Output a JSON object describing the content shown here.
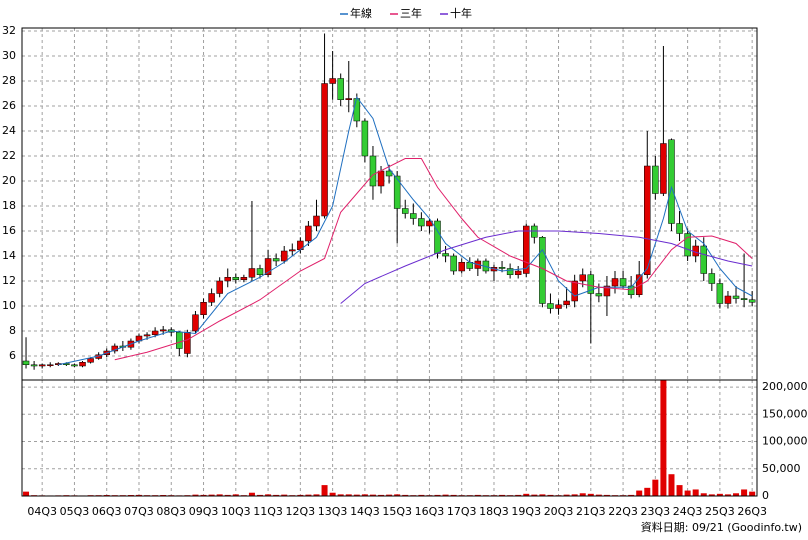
{
  "chart_data": {
    "type": "candlestick",
    "legend_position": "top",
    "grid": true,
    "xlim": [
      -0.5,
      90.6
    ],
    "xticks": [
      {
        "value": 2,
        "label": "04Q3"
      },
      {
        "value": 6,
        "label": "05Q3"
      },
      {
        "value": 10,
        "label": "06Q3"
      },
      {
        "value": 14,
        "label": "07Q3"
      },
      {
        "value": 18,
        "label": "08Q3"
      },
      {
        "value": 22,
        "label": "09Q3"
      },
      {
        "value": 26,
        "label": "10Q3"
      },
      {
        "value": 30,
        "label": "11Q3"
      },
      {
        "value": 34,
        "label": "12Q3"
      },
      {
        "value": 38,
        "label": "13Q3"
      },
      {
        "value": 42,
        "label": "14Q3"
      },
      {
        "value": 46,
        "label": "15Q3"
      },
      {
        "value": 50,
        "label": "16Q3"
      },
      {
        "value": 54,
        "label": "17Q3"
      },
      {
        "value": 58,
        "label": "18Q3"
      },
      {
        "value": 62,
        "label": "19Q3"
      },
      {
        "value": 66,
        "label": "20Q3"
      },
      {
        "value": 70,
        "label": "21Q3"
      },
      {
        "value": 74,
        "label": "22Q3"
      },
      {
        "value": 78,
        "label": "23Q3"
      },
      {
        "value": 82,
        "label": "24Q3"
      },
      {
        "value": 86,
        "label": "25Q3"
      },
      {
        "value": 90,
        "label": "26Q3"
      }
    ],
    "ylim": [
      4.08,
      32.24
    ],
    "yticks": [
      6,
      8,
      10,
      12,
      14,
      16,
      18,
      20,
      22,
      24,
      26,
      28,
      30,
      32
    ],
    "y2lim": [
      0,
      213000
    ],
    "y2ticks": [
      0,
      {
        "value": 50000,
        "label": "50,000"
      },
      {
        "value": 100000,
        "label": "100,000"
      },
      {
        "value": 150000,
        "label": "150,000"
      },
      {
        "value": 200000,
        "label": "200,000"
      }
    ],
    "candles": {
      "up_color": "#e00000",
      "down_color": "#33cc33",
      "volume_color": "#e00000",
      "x": [
        0,
        1,
        2,
        3,
        4,
        5,
        6,
        7,
        8,
        9,
        10,
        11,
        12,
        13,
        14,
        15,
        16,
        17,
        18,
        19,
        20,
        21,
        22,
        23,
        24,
        25,
        26,
        27,
        28,
        29,
        30,
        31,
        32,
        33,
        34,
        35,
        36,
        37,
        38,
        39,
        40,
        41,
        42,
        43,
        44,
        45,
        46,
        47,
        48,
        49,
        50,
        51,
        52,
        53,
        54,
        55,
        56,
        57,
        58,
        59,
        60,
        61,
        62,
        63,
        64,
        65,
        66,
        67,
        68,
        69,
        70,
        71,
        72,
        73,
        74,
        75,
        76,
        77,
        78,
        79,
        80,
        81,
        82,
        83,
        84,
        85,
        86,
        87,
        88,
        89,
        90
      ],
      "ohlc": [
        [
          5.6,
          7.5,
          5.0,
          5.3
        ],
        [
          5.3,
          5.6,
          4.9,
          5.2
        ],
        [
          5.2,
          5.4,
          5.0,
          5.3
        ],
        [
          5.3,
          5.5,
          5.1,
          5.3
        ],
        [
          5.3,
          5.5,
          5.2,
          5.4
        ],
        [
          5.4,
          5.5,
          5.2,
          5.3
        ],
        [
          5.3,
          5.4,
          5.1,
          5.2
        ],
        [
          5.2,
          5.6,
          5.1,
          5.5
        ],
        [
          5.5,
          5.9,
          5.4,
          5.8
        ],
        [
          5.8,
          6.3,
          5.7,
          6.1
        ],
        [
          6.1,
          6.6,
          5.9,
          6.4
        ],
        [
          6.4,
          7.0,
          6.2,
          6.8
        ],
        [
          6.8,
          7.2,
          6.4,
          6.7
        ],
        [
          6.7,
          7.4,
          6.5,
          7.2
        ],
        [
          7.2,
          7.8,
          7.0,
          7.6
        ],
        [
          7.6,
          7.9,
          7.3,
          7.7
        ],
        [
          7.7,
          8.3,
          7.5,
          8.0
        ],
        [
          8.0,
          8.4,
          7.7,
          8.1
        ],
        [
          8.1,
          8.3,
          7.6,
          7.9
        ],
        [
          7.9,
          8.0,
          6.0,
          6.6
        ],
        [
          6.2,
          8.1,
          5.9,
          7.9
        ],
        [
          8.0,
          9.6,
          7.8,
          9.3
        ],
        [
          9.3,
          10.6,
          9.0,
          10.3
        ],
        [
          10.3,
          11.4,
          10.0,
          11.0
        ],
        [
          11.0,
          12.3,
          10.7,
          12.0
        ],
        [
          12.0,
          13.0,
          11.5,
          12.3
        ],
        [
          12.3,
          12.6,
          11.8,
          12.1
        ],
        [
          12.1,
          12.5,
          11.9,
          12.3
        ],
        [
          12.3,
          18.4,
          12.0,
          13.0
        ],
        [
          13.0,
          13.3,
          12.2,
          12.5
        ],
        [
          12.5,
          14.5,
          12.3,
          13.8
        ],
        [
          13.8,
          14.2,
          13.2,
          13.6
        ],
        [
          13.6,
          14.8,
          13.4,
          14.4
        ],
        [
          14.4,
          15.0,
          14.0,
          14.5
        ],
        [
          14.5,
          15.5,
          14.2,
          15.2
        ],
        [
          15.2,
          16.8,
          14.8,
          16.4
        ],
        [
          16.4,
          18.5,
          16.0,
          17.2
        ],
        [
          17.2,
          31.8,
          17.0,
          27.8
        ],
        [
          27.8,
          30.4,
          26.5,
          28.2
        ],
        [
          28.2,
          28.6,
          26.0,
          26.5
        ],
        [
          26.5,
          29.6,
          25.5,
          26.6
        ],
        [
          26.6,
          27.0,
          24.3,
          24.8
        ],
        [
          24.8,
          25.0,
          21.5,
          22.0
        ],
        [
          22.0,
          22.8,
          18.5,
          19.6
        ],
        [
          19.6,
          21.2,
          19.0,
          20.8
        ],
        [
          20.8,
          21.3,
          19.8,
          20.4
        ],
        [
          20.4,
          20.8,
          15.0,
          17.8
        ],
        [
          17.8,
          18.5,
          17.0,
          17.4
        ],
        [
          17.4,
          18.2,
          16.5,
          17.0
        ],
        [
          17.0,
          17.5,
          16.0,
          16.4
        ],
        [
          16.4,
          17.0,
          15.8,
          16.8
        ],
        [
          16.8,
          17.0,
          13.8,
          14.2
        ],
        [
          14.2,
          14.8,
          13.5,
          14.0
        ],
        [
          14.0,
          14.2,
          12.5,
          12.8
        ],
        [
          12.8,
          13.8,
          12.6,
          13.5
        ],
        [
          13.5,
          13.9,
          12.8,
          13.0
        ],
        [
          13.0,
          13.8,
          12.4,
          13.6
        ],
        [
          13.6,
          13.8,
          12.6,
          12.8
        ],
        [
          12.8,
          13.3,
          12.0,
          13.1
        ],
        [
          13.1,
          13.6,
          12.7,
          13.0
        ],
        [
          13.0,
          13.4,
          12.2,
          12.5
        ],
        [
          12.5,
          13.2,
          12.2,
          12.8
        ],
        [
          12.6,
          16.6,
          12.3,
          16.4
        ],
        [
          16.4,
          16.6,
          15.0,
          15.5
        ],
        [
          15.5,
          15.6,
          9.9,
          10.2
        ],
        [
          10.2,
          11.0,
          9.4,
          9.8
        ],
        [
          9.8,
          10.5,
          9.3,
          10.1
        ],
        [
          10.1,
          11.5,
          9.8,
          10.4
        ],
        [
          10.4,
          12.5,
          9.9,
          12.0
        ],
        [
          12.0,
          13.0,
          11.5,
          12.5
        ],
        [
          12.5,
          12.8,
          7.0,
          11.0
        ],
        [
          11.0,
          11.8,
          10.3,
          10.8
        ],
        [
          10.8,
          12.4,
          9.2,
          11.6
        ],
        [
          11.6,
          12.8,
          11.0,
          12.2
        ],
        [
          12.2,
          12.8,
          11.4,
          11.6
        ],
        [
          11.6,
          12.4,
          10.6,
          10.9
        ],
        [
          10.9,
          13.6,
          10.7,
          12.5
        ],
        [
          12.5,
          24.0,
          12.2,
          21.2
        ],
        [
          21.2,
          22.0,
          18.5,
          19.0
        ],
        [
          19.0,
          30.8,
          18.8,
          23.0
        ],
        [
          23.3,
          23.4,
          16.0,
          16.6
        ],
        [
          16.6,
          17.6,
          15.2,
          15.8
        ],
        [
          15.8,
          16.2,
          13.6,
          14.0
        ],
        [
          14.0,
          15.3,
          13.5,
          14.8
        ],
        [
          14.8,
          15.5,
          12.0,
          12.6
        ],
        [
          12.6,
          13.0,
          11.2,
          11.8
        ],
        [
          11.8,
          12.2,
          9.8,
          10.2
        ],
        [
          10.2,
          11.2,
          9.8,
          10.8
        ],
        [
          10.8,
          11.6,
          10.2,
          10.6
        ],
        [
          10.6,
          14.2,
          9.9,
          10.5
        ],
        [
          10.5,
          11.2,
          10.0,
          10.3
        ]
      ],
      "volume": [
        8000,
        1500,
        1200,
        1000,
        1200,
        1500,
        1200,
        1000,
        1500,
        1500,
        1800,
        1500,
        1500,
        1800,
        2000,
        1500,
        1500,
        1800,
        1500,
        1200,
        1500,
        2500,
        2000,
        2500,
        3000,
        2000,
        3000,
        1500,
        6000,
        2000,
        3000,
        2000,
        2500,
        1500,
        2000,
        2500,
        3000,
        20000,
        6000,
        3000,
        3000,
        2500,
        3000,
        2500,
        2000,
        2500,
        3000,
        2000,
        1500,
        2000,
        1500,
        2000,
        2500,
        2000,
        1500,
        1500,
        2000,
        1500,
        1500,
        2000,
        1500,
        2000,
        4000,
        2500,
        3000,
        2000,
        1500,
        2500,
        3000,
        5000,
        4000,
        2500,
        2000,
        1500,
        1500,
        2000,
        10000,
        15000,
        30000,
        213000,
        40000,
        20000,
        10000,
        12000,
        5000,
        3000,
        4000,
        3000,
        5000,
        12000,
        8000
      ]
    },
    "series": [
      {
        "name": "年線",
        "color": "#1f6fc0",
        "x": [
          4,
          9,
          14,
          18,
          21,
          25,
          29,
          32,
          36,
          38,
          40,
          41,
          43,
          45,
          48,
          50,
          52,
          55,
          59,
          62,
          64,
          66,
          68,
          71,
          75,
          77,
          79,
          80,
          82,
          84,
          86,
          88,
          90
        ],
        "values": [
          5.3,
          6,
          7.2,
          8,
          7.8,
          11,
          12.3,
          13.5,
          15.5,
          18,
          24,
          26.7,
          25,
          21,
          18.5,
          17,
          15,
          13.5,
          12.8,
          13,
          14.5,
          12,
          10.8,
          11.5,
          11.5,
          13,
          17,
          19.5,
          16,
          15,
          13,
          11.5,
          10.8
        ]
      },
      {
        "name": "三年",
        "color": "#e0206a",
        "x": [
          11,
          15,
          20,
          24,
          29,
          34,
          37,
          39,
          43,
          47,
          49,
          51,
          54,
          56,
          60,
          64,
          67,
          71,
          75,
          77,
          80,
          82,
          85,
          88,
          90
        ],
        "values": [
          5.7,
          6.3,
          7.3,
          8.8,
          10.5,
          12.8,
          13.8,
          17.5,
          20.5,
          21.8,
          21.8,
          19.5,
          17,
          15.5,
          14,
          13,
          12,
          11.5,
          11.3,
          12,
          14.5,
          15.5,
          15.6,
          15,
          13.8
        ]
      },
      {
        "name": "十年",
        "color": "#6a2ccf",
        "x": [
          39,
          42,
          47,
          52,
          57,
          61,
          66,
          71,
          76,
          80,
          83,
          87,
          90
        ],
        "values": [
          10.2,
          11.8,
          13.2,
          14.5,
          15.5,
          16,
          16,
          15.8,
          15.5,
          15,
          14.3,
          13.6,
          13.2
        ]
      }
    ],
    "footnote": "資料日期: 09/21  (Goodinfo.tw)"
  }
}
